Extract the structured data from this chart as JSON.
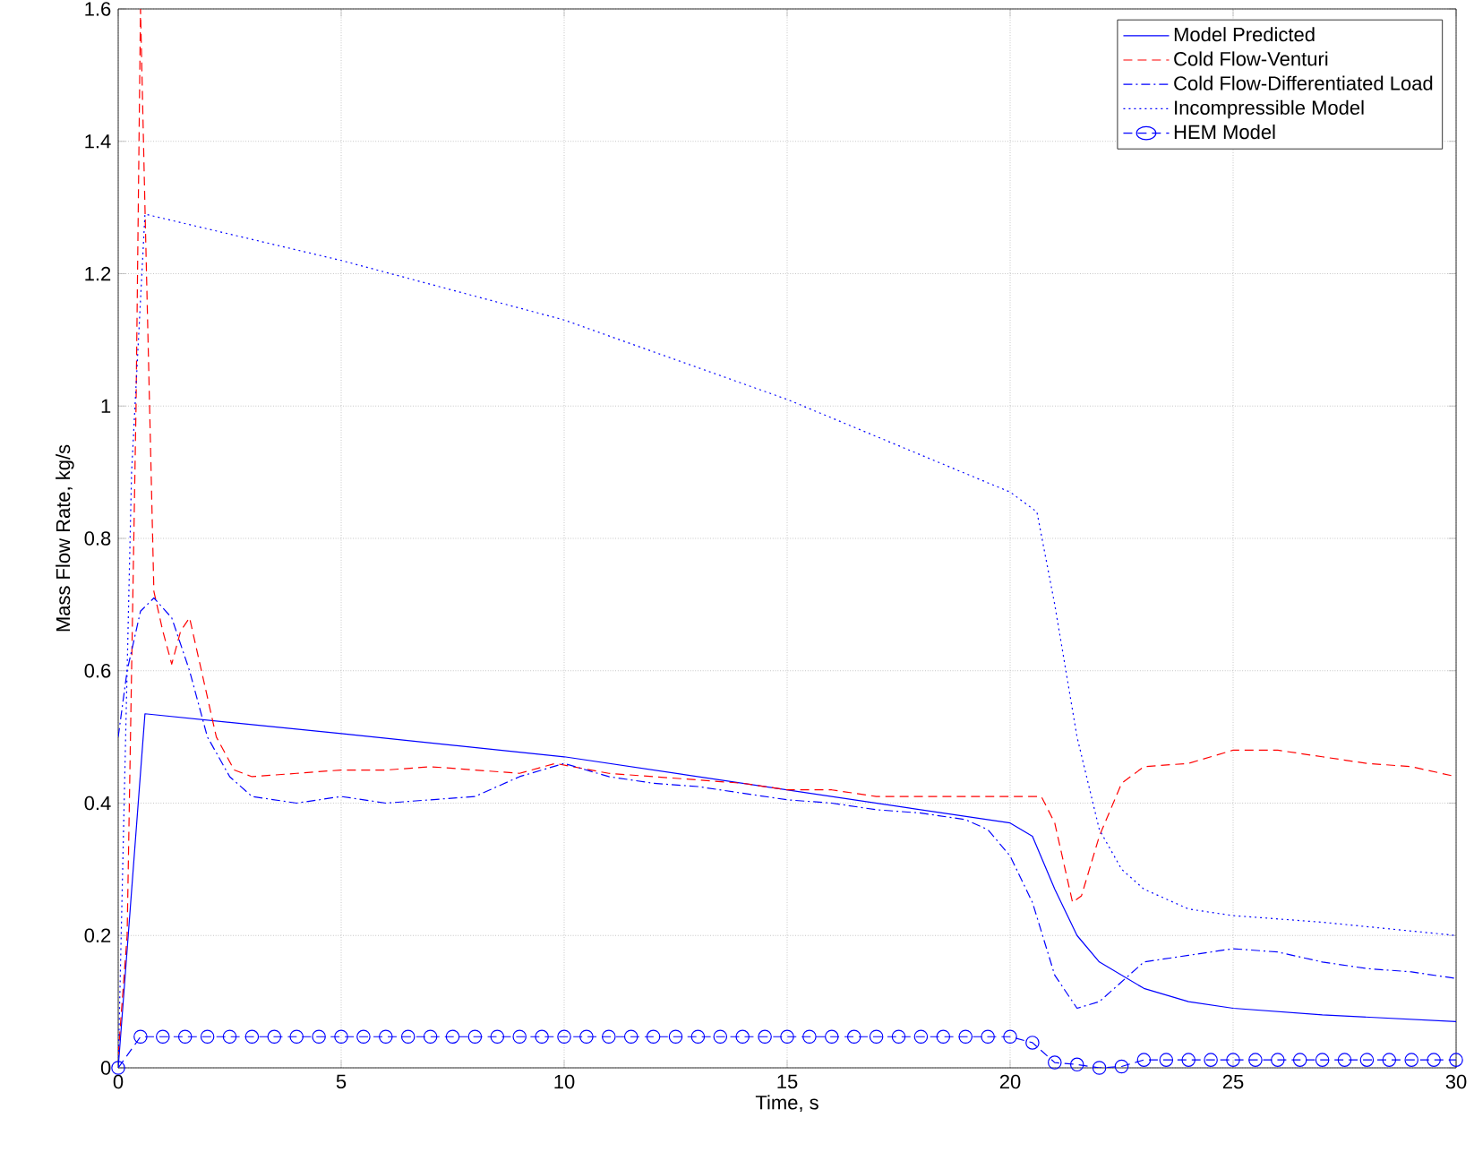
{
  "chart_data": {
    "type": "line",
    "xlabel": "Time, s",
    "ylabel": "Mass Flow Rate, kg/s",
    "xlim": [
      0,
      30
    ],
    "ylim": [
      0,
      1.6
    ],
    "xticks": [
      0,
      5,
      10,
      15,
      20,
      25,
      30
    ],
    "yticks": [
      0,
      {
        "value": 0.2,
        "label": "0.2"
      },
      {
        "value": 0.4,
        "label": "0.4"
      },
      {
        "value": 0.6,
        "label": "0.6"
      },
      {
        "value": 0.8,
        "label": "0.8"
      },
      1,
      {
        "value": 1.2,
        "label": "1.2"
      },
      {
        "value": 1.4,
        "label": "1.4"
      },
      {
        "value": 1.6,
        "label": "1.6"
      }
    ],
    "grid": true,
    "legend": "top right",
    "series": [
      {
        "name": "Model Predicted",
        "color": "#0000ff",
        "line_style": "solid",
        "marker": "none",
        "x": [
          0,
          0.6,
          5,
          10,
          15,
          20,
          20.5,
          21,
          21.5,
          22,
          23,
          24,
          25,
          27,
          30
        ],
        "values": [
          0,
          0.535,
          0.505,
          0.47,
          0.42,
          0.37,
          0.35,
          0.27,
          0.2,
          0.16,
          0.12,
          0.1,
          0.09,
          0.08,
          0.07
        ]
      },
      {
        "name": "Cold Flow-Venturi",
        "color": "#ff0000",
        "line_style": "dashed",
        "marker": "none",
        "x": [
          0,
          0.2,
          0.4,
          0.5,
          0.6,
          0.8,
          1.0,
          1.2,
          1.4,
          1.6,
          1.8,
          2.2,
          2.6,
          3,
          4,
          5,
          6,
          7,
          8,
          9,
          9.8,
          11,
          12,
          13,
          14,
          15,
          16,
          17,
          18,
          19,
          20,
          20.7,
          21,
          21.4,
          21.6,
          22,
          22.5,
          23,
          24,
          25,
          26,
          27,
          28,
          29,
          30
        ],
        "values": [
          0.02,
          0.2,
          1.0,
          1.6,
          1.3,
          0.72,
          0.66,
          0.61,
          0.66,
          0.68,
          0.62,
          0.5,
          0.45,
          0.44,
          0.445,
          0.45,
          0.45,
          0.455,
          0.45,
          0.445,
          0.46,
          0.445,
          0.44,
          0.435,
          0.43,
          0.42,
          0.42,
          0.41,
          0.41,
          0.41,
          0.41,
          0.41,
          0.37,
          0.25,
          0.26,
          0.35,
          0.43,
          0.455,
          0.46,
          0.48,
          0.48,
          0.47,
          0.46,
          0.455,
          0.44
        ]
      },
      {
        "name": "Cold Flow-Differentiated Load",
        "color": "#0000ff",
        "line_style": "dashdot",
        "marker": "none",
        "x": [
          0,
          0.2,
          0.5,
          0.8,
          1.2,
          1.6,
          2,
          2.5,
          3,
          4,
          5,
          6,
          7,
          8,
          9,
          10,
          11,
          12,
          13,
          14,
          15,
          16,
          17,
          18,
          19,
          19.5,
          20,
          20.5,
          21,
          21.5,
          22,
          22.5,
          23,
          24,
          25,
          26,
          27,
          28,
          29,
          30
        ],
        "values": [
          0.5,
          0.6,
          0.69,
          0.71,
          0.68,
          0.6,
          0.5,
          0.44,
          0.41,
          0.4,
          0.41,
          0.4,
          0.405,
          0.41,
          0.44,
          0.46,
          0.44,
          0.43,
          0.425,
          0.415,
          0.405,
          0.4,
          0.39,
          0.385,
          0.375,
          0.36,
          0.32,
          0.25,
          0.14,
          0.09,
          0.1,
          0.13,
          0.16,
          0.17,
          0.18,
          0.175,
          0.16,
          0.15,
          0.145,
          0.135
        ]
      },
      {
        "name": "Incompressible Model",
        "color": "#0000ff",
        "line_style": "dotted",
        "marker": "none",
        "x": [
          0,
          0.3,
          0.6,
          5,
          10,
          15,
          20,
          20.6,
          21,
          21.5,
          22,
          22.5,
          23,
          24,
          25,
          27,
          30
        ],
        "values": [
          0,
          0.9,
          1.29,
          1.22,
          1.13,
          1.01,
          0.87,
          0.84,
          0.7,
          0.5,
          0.36,
          0.3,
          0.27,
          0.24,
          0.23,
          0.22,
          0.2
        ]
      },
      {
        "name": "HEM Model",
        "color": "#0000ff",
        "line_style": "dashed",
        "marker": "circle",
        "x": [
          0,
          0.5,
          1,
          1.5,
          2,
          2.5,
          3,
          3.5,
          4,
          4.5,
          5,
          5.5,
          6,
          6.5,
          7,
          7.5,
          8,
          8.5,
          9,
          9.5,
          10,
          10.5,
          11,
          11.5,
          12,
          12.5,
          13,
          13.5,
          14,
          14.5,
          15,
          15.5,
          16,
          16.5,
          17,
          17.5,
          18,
          18.5,
          19,
          19.5,
          20,
          20.5,
          21,
          21.5,
          22,
          22.5,
          23,
          23.5,
          24,
          24.5,
          25,
          25.5,
          26,
          26.5,
          27,
          27.5,
          28,
          28.5,
          29,
          29.5,
          30
        ],
        "values": [
          0,
          0.047,
          0.047,
          0.047,
          0.047,
          0.047,
          0.047,
          0.047,
          0.047,
          0.047,
          0.047,
          0.047,
          0.047,
          0.047,
          0.047,
          0.047,
          0.047,
          0.047,
          0.047,
          0.047,
          0.047,
          0.047,
          0.047,
          0.047,
          0.047,
          0.047,
          0.047,
          0.047,
          0.047,
          0.047,
          0.047,
          0.047,
          0.047,
          0.047,
          0.047,
          0.047,
          0.047,
          0.047,
          0.047,
          0.047,
          0.047,
          0.038,
          0.008,
          0.005,
          0,
          0.002,
          0.012,
          0.012,
          0.012,
          0.012,
          0.012,
          0.012,
          0.012,
          0.012,
          0.012,
          0.012,
          0.012,
          0.012,
          0.012,
          0.012,
          0.012
        ]
      }
    ]
  }
}
